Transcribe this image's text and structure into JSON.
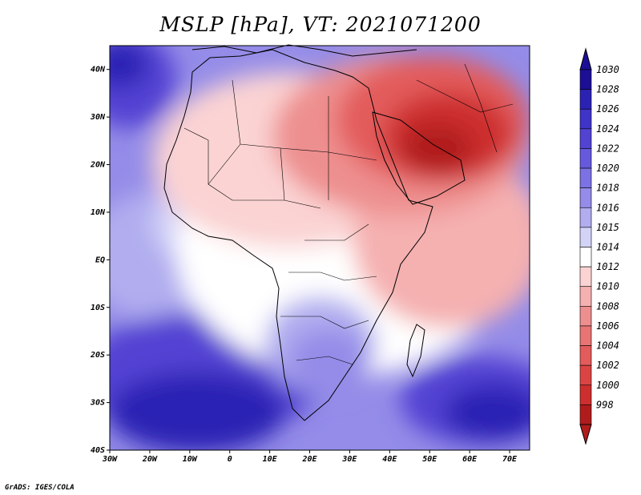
{
  "title": "MSLP [hPa], VT: 2021071200",
  "credit": "GrADS: IGES/COLA",
  "map": {
    "lon_range": [
      -30,
      75
    ],
    "lat_range": [
      -40,
      45
    ],
    "lon_ticks": [
      {
        "value": -30,
        "label": "30W"
      },
      {
        "value": -20,
        "label": "20W"
      },
      {
        "value": -10,
        "label": "10W"
      },
      {
        "value": 0,
        "label": "0"
      },
      {
        "value": 10,
        "label": "10E"
      },
      {
        "value": 20,
        "label": "20E"
      },
      {
        "value": 30,
        "label": "30E"
      },
      {
        "value": 40,
        "label": "40E"
      },
      {
        "value": 50,
        "label": "50E"
      },
      {
        "value": 60,
        "label": "60E"
      },
      {
        "value": 70,
        "label": "70E"
      }
    ],
    "lat_ticks": [
      {
        "value": 40,
        "label": "40N"
      },
      {
        "value": 30,
        "label": "30N"
      },
      {
        "value": 20,
        "label": "20N"
      },
      {
        "value": 10,
        "label": "10N"
      },
      {
        "value": 0,
        "label": "EQ"
      },
      {
        "value": -10,
        "label": "10S"
      },
      {
        "value": -20,
        "label": "20S"
      },
      {
        "value": -30,
        "label": "30S"
      },
      {
        "value": -40,
        "label": "40S"
      }
    ]
  },
  "colorbar": {
    "levels": [
      {
        "label": "1030",
        "color": "#1c0f96"
      },
      {
        "label": "1028",
        "color": "#2b22b4"
      },
      {
        "label": "1026",
        "color": "#3f34c7"
      },
      {
        "label": "1024",
        "color": "#5243d3"
      },
      {
        "label": "1022",
        "color": "#6659dd"
      },
      {
        "label": "1020",
        "color": "#7c72e4"
      },
      {
        "label": "1018",
        "color": "#948ce8"
      },
      {
        "label": "1016",
        "color": "#b1adef"
      },
      {
        "label": "1015",
        "color": "#d3d3f8"
      },
      {
        "label": "1014",
        "color": "#ffffff"
      },
      {
        "label": "1012",
        "color": "#fbd3d3"
      },
      {
        "label": "1010",
        "color": "#f5b0b0"
      },
      {
        "label": "1008",
        "color": "#ee8f8f"
      },
      {
        "label": "1006",
        "color": "#e87474"
      },
      {
        "label": "1004",
        "color": "#e35b5b"
      },
      {
        "label": "1002",
        "color": "#dc4444"
      },
      {
        "label": "1000",
        "color": "#cd2f2f"
      },
      {
        "label": "998",
        "color": "#b01c1c"
      }
    ]
  }
}
